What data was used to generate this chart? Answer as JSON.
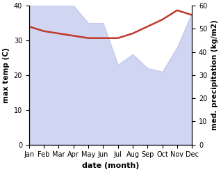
{
  "months": [
    "Jan",
    "Feb",
    "Mar",
    "Apr",
    "May",
    "Jun",
    "Jul",
    "Aug",
    "Sep",
    "Oct",
    "Nov",
    "Dec"
  ],
  "max_temp": [
    43,
    43,
    42,
    40,
    35,
    35,
    23,
    26,
    22,
    21,
    28,
    38
  ],
  "med_precip": [
    51,
    49,
    48,
    47,
    46,
    46,
    46,
    48,
    51,
    54,
    58,
    56
  ],
  "precip_fill_color": "#aab4e8",
  "precip_fill_alpha": 0.55,
  "precip_line_color": "#c0392b",
  "ylim_left": [
    0,
    40
  ],
  "ylim_right": [
    0,
    60
  ],
  "ylabel_left": "max temp (C)",
  "ylabel_right": "med. precipitation (kg/m2)",
  "xlabel": "date (month)",
  "xlabel_fontsize": 8,
  "ylabel_fontsize": 7.5,
  "tick_fontsize": 7,
  "yticks_left": [
    0,
    10,
    20,
    30,
    40
  ],
  "yticks_right": [
    0,
    10,
    20,
    30,
    40,
    50,
    60
  ],
  "line_width": 1.8
}
